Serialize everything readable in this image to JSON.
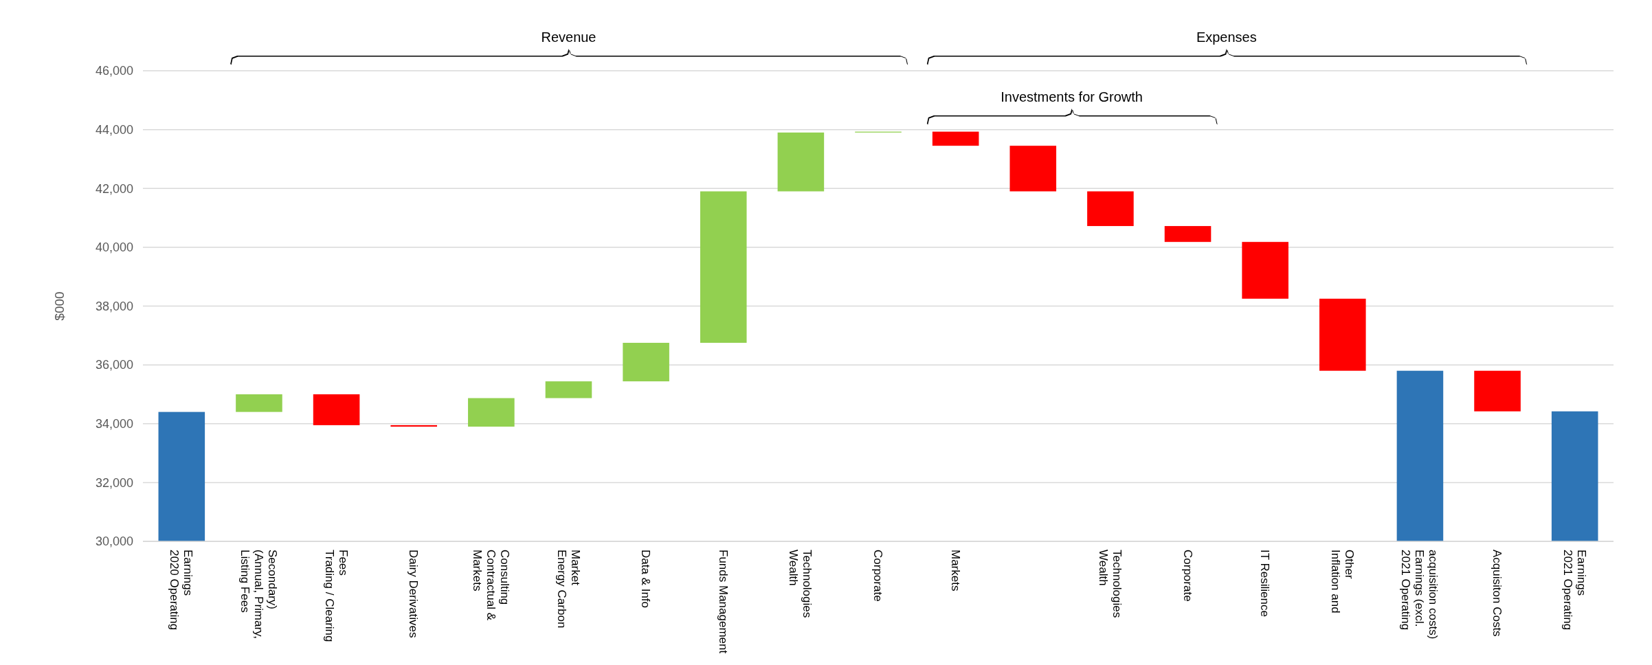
{
  "chart_data": {
    "type": "bar",
    "ylabel": "$000",
    "categories": [
      "2020 Operating Earnings",
      "Listing Fees (Annual, Primary, Secondary)",
      "Trading / Clearing Fees",
      "Dairy Derivatives",
      "Markets Contractual & Consulting",
      "Energy Carbon Market",
      "Data & Info",
      "Funds Management",
      "Wealth Technologies",
      "Corporate",
      "Markets",
      null,
      "Wealth Technologies",
      "Corporate",
      "IT Resilience",
      "Inflation and Other",
      "2021 Operating Earnings (excl. acquisition costs)",
      "Acquisiton Costs",
      "2021 Operating Earnings"
    ],
    "base": [
      30000,
      34400,
      35000,
      33950,
      33900,
      34870,
      35440,
      36750,
      41900,
      43900,
      43930,
      43450,
      41900,
      40720,
      40180,
      38250,
      30000,
      35800,
      30000
    ],
    "values": [
      4400,
      600,
      -1050,
      -50,
      970,
      570,
      1310,
      5150,
      2000,
      30,
      -480,
      -1550,
      -1180,
      -540,
      -1930,
      -2450,
      5800,
      -1380,
      4420
    ],
    "colors": [
      "#2e75b6",
      "#92d050",
      "#ff0000",
      "#ff0000",
      "#92d050",
      "#92d050",
      "#92d050",
      "#92d050",
      "#92d050",
      "#92d050",
      "#ff0000",
      "#ff0000",
      "#ff0000",
      "#ff0000",
      "#ff0000",
      "#ff0000",
      "#2e75b6",
      "#ff0000",
      "#2e75b6"
    ],
    "ylim": [
      30000,
      46000
    ],
    "yticks": [
      {
        "value": 30000,
        "label": "30,000"
      },
      {
        "value": 32000,
        "label": "32,000"
      },
      {
        "value": 34000,
        "label": "34,000"
      },
      {
        "value": 36000,
        "label": "36,000"
      },
      {
        "value": 38000,
        "label": "38,000"
      },
      {
        "value": 40000,
        "label": "40,000"
      },
      {
        "value": 42000,
        "label": "42,000"
      },
      {
        "value": 44000,
        "label": "44,000"
      },
      {
        "value": 46000,
        "label": "46,000"
      }
    ],
    "grid": true,
    "annotations": [
      "Revenue",
      "Expenses",
      "Investments for Growth"
    ]
  }
}
